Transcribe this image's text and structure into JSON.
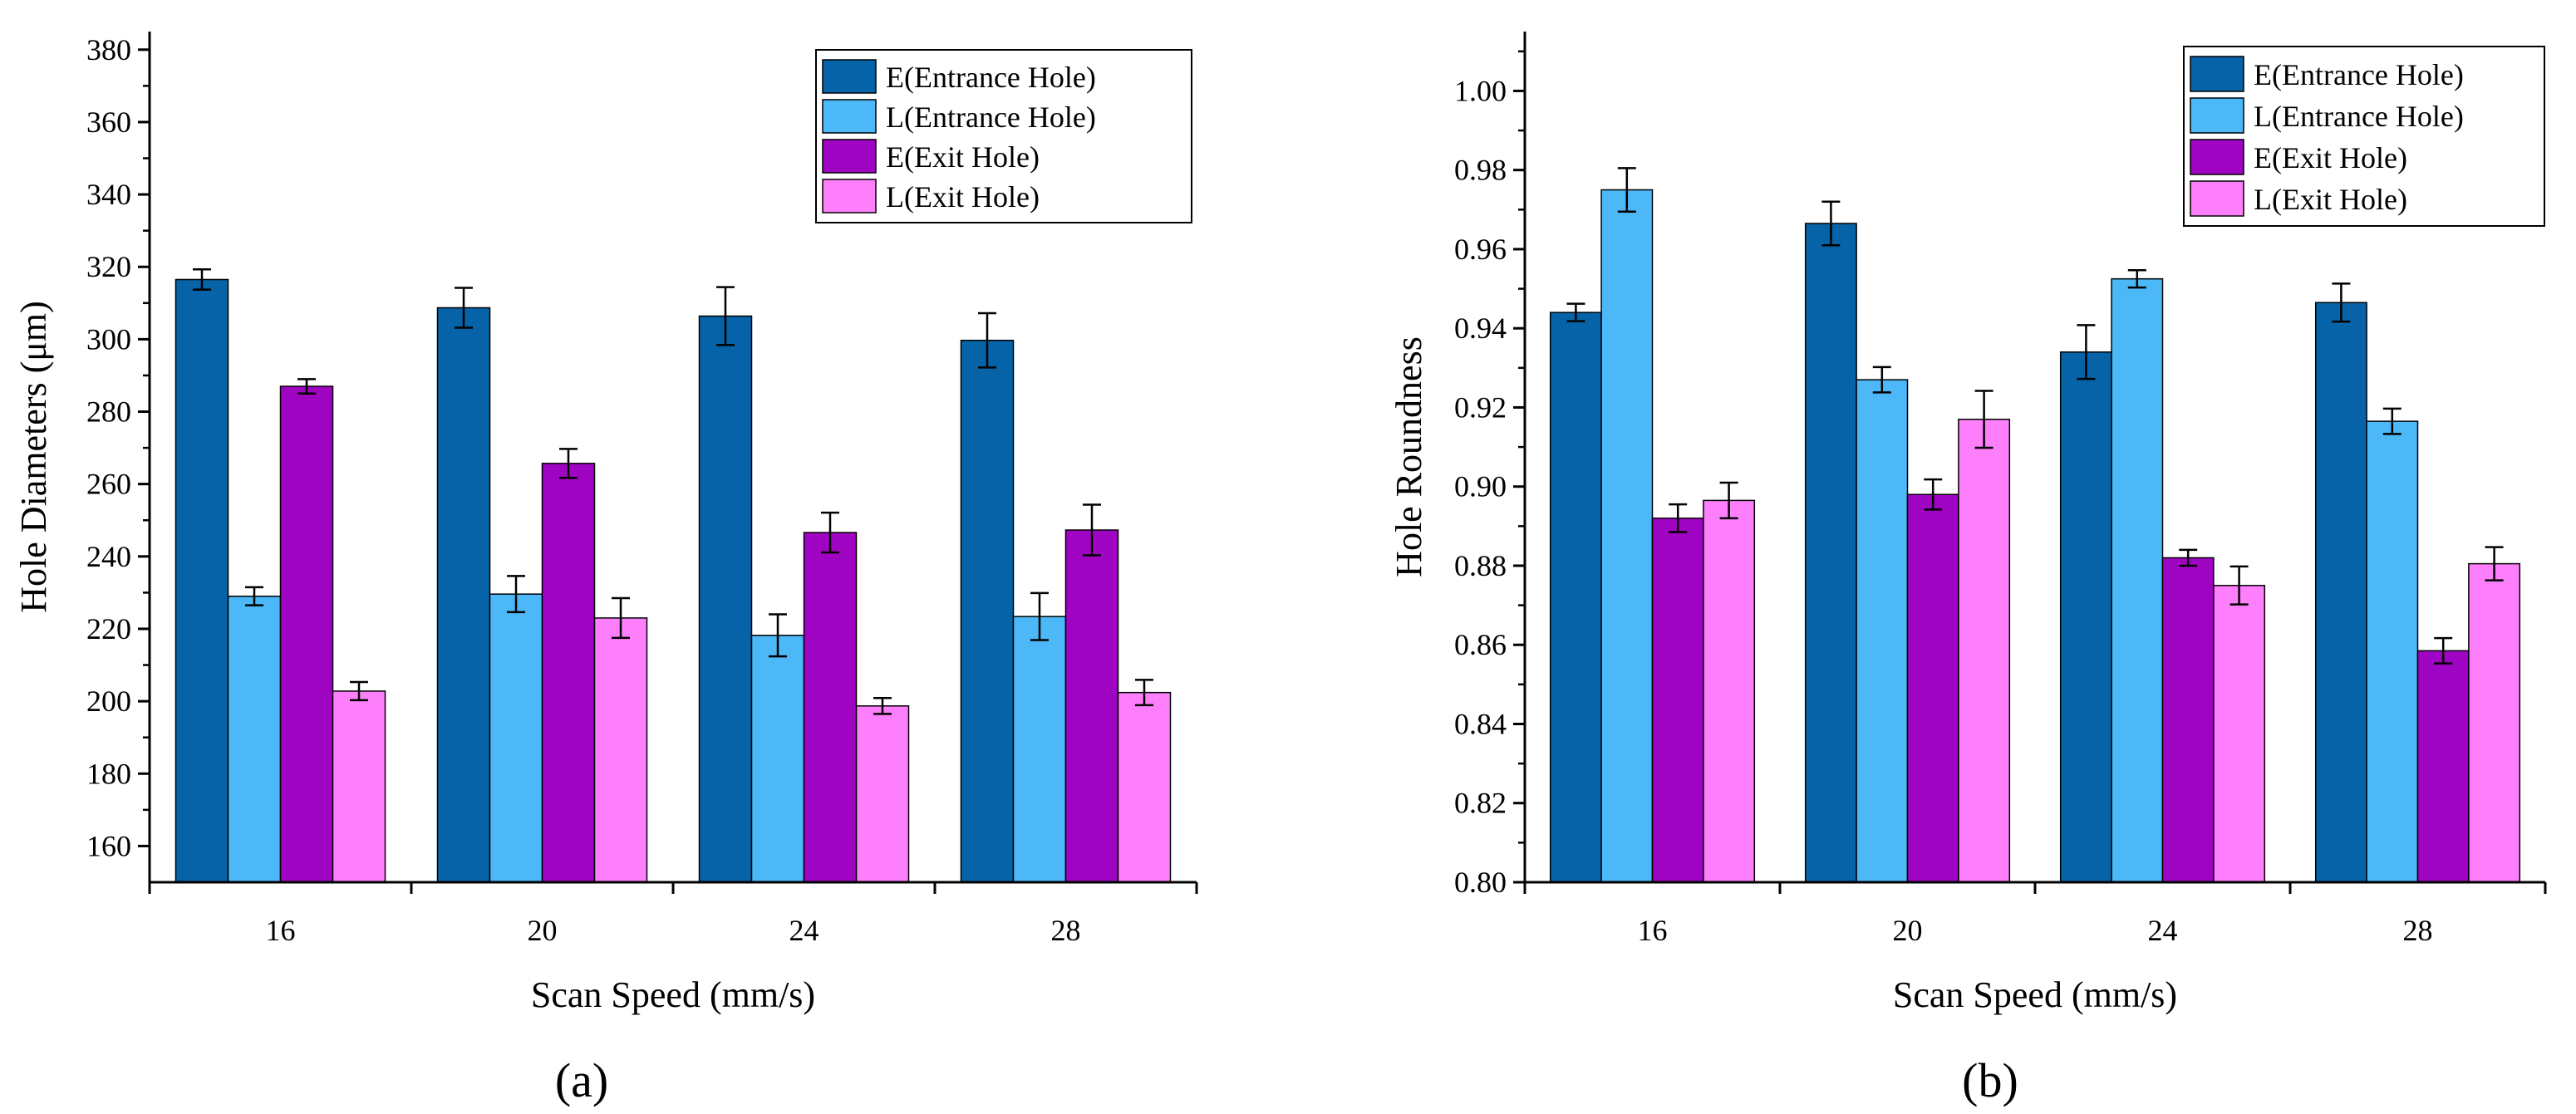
{
  "chart_data": [
    {
      "type": "bar",
      "panel_label": "(a)",
      "xlabel": "Scan Speed (mm/s)",
      "ylabel": "Hole Diameters (μm)",
      "ylim": [
        150,
        385
      ],
      "yticks": [
        160,
        180,
        200,
        220,
        240,
        260,
        280,
        300,
        320,
        340,
        360,
        380
      ],
      "categories": [
        "16",
        "20",
        "24",
        "28"
      ],
      "legend_position": "top-right",
      "series": [
        {
          "name": "E(Entrance Hole)",
          "color": "#0663a8",
          "values": [
            316.5,
            308.7,
            306.4,
            299.7
          ],
          "errors": [
            2.8,
            5.5,
            8.0,
            7.5
          ]
        },
        {
          "name": "L(Entrance Hole)",
          "color": "#4db8f8",
          "values": [
            229.0,
            229.6,
            218.2,
            223.4
          ],
          "errors": [
            2.5,
            5.0,
            5.8,
            6.5
          ]
        },
        {
          "name": "E(Exit Hole)",
          "color": "#9f04c2",
          "values": [
            287.0,
            265.7,
            246.6,
            247.3
          ],
          "errors": [
            2.0,
            4.0,
            5.5,
            7.0
          ]
        },
        {
          "name": "L(Exit Hole)",
          "color": "#fd7ffb",
          "values": [
            202.8,
            223.0,
            198.7,
            202.4
          ],
          "errors": [
            2.5,
            5.5,
            2.2,
            3.5
          ]
        }
      ]
    },
    {
      "type": "bar",
      "panel_label": "(b)",
      "xlabel": "Scan Speed (mm/s)",
      "ylabel": "Hole Roundness",
      "ylim": [
        0.8,
        1.015
      ],
      "yticks": [
        "0.80",
        "0.82",
        "0.84",
        "0.86",
        "0.88",
        "0.90",
        "0.92",
        "0.94",
        "0.96",
        "0.98",
        "1.00"
      ],
      "categories": [
        "16",
        "20",
        "24",
        "28"
      ],
      "legend_position": "top-right",
      "series": [
        {
          "name": "E(Entrance Hole)",
          "color": "#0663a8",
          "values": [
            0.944,
            0.9665,
            0.934,
            0.9465
          ],
          "errors": [
            0.0022,
            0.0055,
            0.0068,
            0.0048
          ]
        },
        {
          "name": "L(Entrance Hole)",
          "color": "#4db8f8",
          "values": [
            0.975,
            0.927,
            0.9525,
            0.9165
          ],
          "errors": [
            0.0055,
            0.0032,
            0.0022,
            0.0032
          ]
        },
        {
          "name": "E(Exit Hole)",
          "color": "#9f04c2",
          "values": [
            0.892,
            0.898,
            0.882,
            0.8585
          ],
          "errors": [
            0.0035,
            0.0038,
            0.002,
            0.0032
          ]
        },
        {
          "name": "L(Exit Hole)",
          "color": "#fd7ffb",
          "values": [
            0.8965,
            0.917,
            0.875,
            0.8805
          ],
          "errors": [
            0.0045,
            0.0072,
            0.0048,
            0.0042
          ]
        }
      ]
    }
  ]
}
